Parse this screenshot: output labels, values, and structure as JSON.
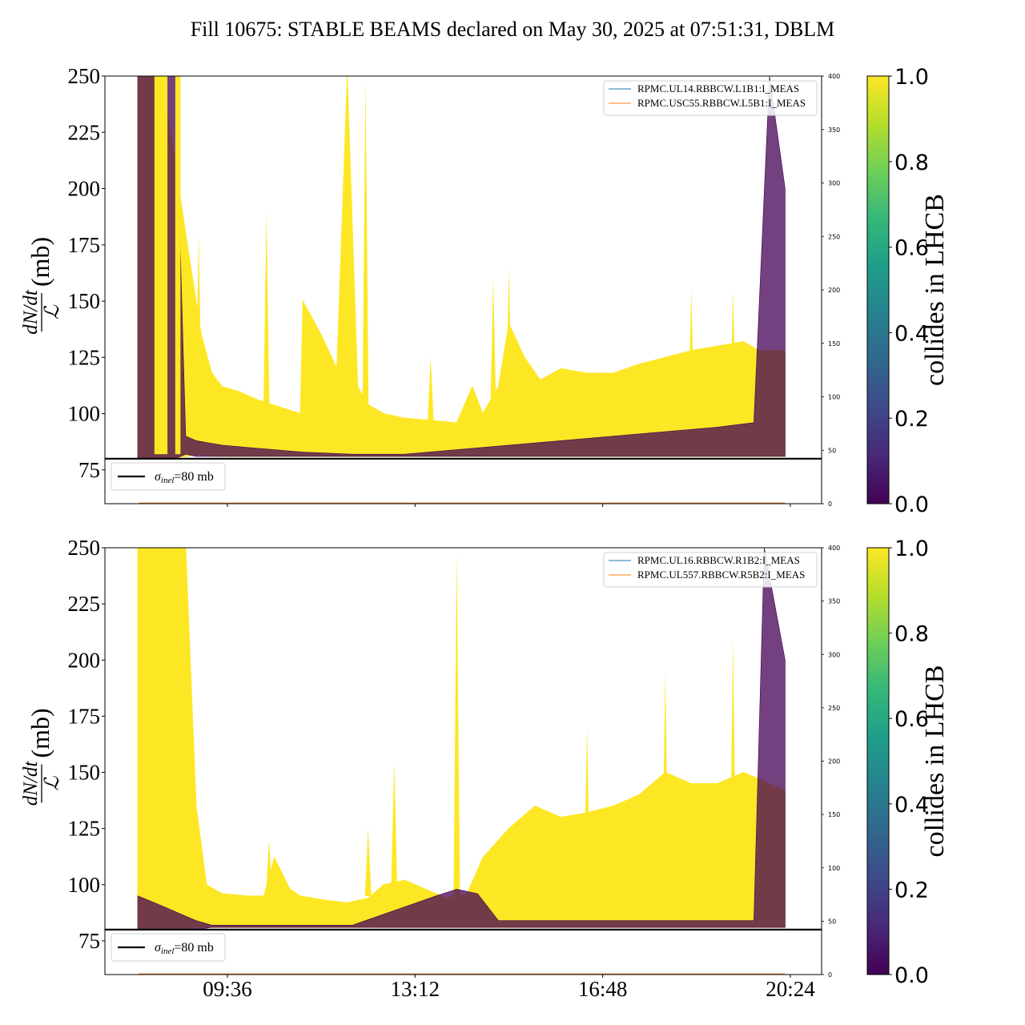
{
  "title": "Fill 10675: STABLE BEAMS declared on May 30, 2025 at 07:51:31, DBLM",
  "colors": {
    "collides": "#fde725",
    "noncollides": "#440154",
    "line_blue": "#1f77b4",
    "line_orange": "#ff7f0e",
    "reference": "#000000"
  },
  "chart_data": [
    {
      "type": "area",
      "panel": "top",
      "ylabel": {
        "numerator": "dN/dt",
        "denominator": "ℒ",
        "unit": "(mb)"
      },
      "ylim": [
        60,
        250
      ],
      "yticks": [
        75,
        100,
        125,
        150,
        175,
        200,
        225,
        250
      ],
      "right_axis": {
        "ylim": [
          0,
          400
        ],
        "ticks": [
          0,
          50,
          100,
          150,
          200,
          250,
          300,
          350,
          400
        ]
      },
      "xticks": [
        "09:36",
        "13:12",
        "16:48",
        "20:24"
      ],
      "xlim_hours": [
        7.25,
        21.0
      ],
      "xtick_hours": [
        9.6,
        13.2,
        16.8,
        20.4
      ],
      "series": [
        {
          "name": "RPMC.UL14.RBBCW.L1B1:I_MEAS",
          "color": "line_blue",
          "values": [
            0,
            0
          ]
        },
        {
          "name": "RPMC.USC55.RBBCW.L5B1:I_MEAS",
          "color": "line_orange",
          "values": [
            0,
            0
          ]
        }
      ],
      "reference_line": {
        "value": 80,
        "label_symbol": "σ",
        "label_sub": "inel",
        "label_rest": "=80 mb"
      },
      "envelope_collides": {
        "t": [
          7.88,
          8.05,
          8.35,
          8.8,
          9.1,
          9.3,
          9.5,
          9.8,
          10.2,
          10.6,
          11.0,
          11.05,
          11.4,
          11.7,
          11.9,
          12.1,
          12.3,
          12.6,
          13.0,
          13.5,
          14.0,
          14.3,
          14.5,
          14.8,
          15.0,
          15.3,
          15.6,
          16.0,
          16.5,
          17.0,
          17.5,
          18.0,
          18.5,
          19.0,
          19.5,
          19.8,
          20.3
        ],
        "upper": [
          250,
          250,
          250,
          180,
          135,
          118,
          112,
          110,
          106,
          103,
          100,
          150,
          135,
          120,
          250,
          112,
          104,
          100,
          98,
          97,
          96,
          112,
          100,
          112,
          140,
          125,
          115,
          120,
          118,
          118,
          122,
          125,
          128,
          130,
          132,
          128,
          128
        ],
        "lower": [
          80,
          80,
          80,
          81,
          82,
          81,
          81,
          81,
          81,
          81,
          81,
          81,
          81,
          81,
          81,
          81,
          81,
          81,
          81,
          81,
          81,
          81,
          81,
          81,
          81,
          81,
          81,
          81,
          81,
          81,
          81,
          81,
          81,
          81,
          81,
          81,
          81
        ]
      },
      "envelope_noncollides": {
        "t": [
          7.88,
          8.1,
          8.35,
          8.6,
          8.8,
          9.0,
          9.5,
          10.0,
          11.0,
          12.0,
          13.0,
          14.0,
          15.0,
          16.0,
          17.0,
          18.0,
          19.0,
          19.7,
          20.0,
          20.3
        ],
        "upper": [
          250,
          250,
          250,
          250,
          90,
          88,
          86,
          85,
          83,
          82,
          82,
          84,
          86,
          88,
          90,
          92,
          94,
          96,
          250,
          200
        ],
        "lower": [
          80,
          80,
          80,
          80,
          82,
          81,
          81,
          81,
          81,
          81,
          81,
          81,
          81,
          81,
          81,
          81,
          81,
          81,
          81,
          81
        ]
      },
      "spikes": [
        {
          "t": 9.05,
          "value": 180
        },
        {
          "t": 10.35,
          "value": 190
        },
        {
          "t": 11.9,
          "value": 250
        },
        {
          "t": 12.25,
          "value": 250
        },
        {
          "t": 13.5,
          "value": 125
        },
        {
          "t": 14.7,
          "value": 160
        },
        {
          "t": 15.0,
          "value": 165
        },
        {
          "t": 18.5,
          "value": 155
        },
        {
          "t": 19.3,
          "value": 155
        }
      ]
    },
    {
      "type": "area",
      "panel": "bottom",
      "ylabel": {
        "numerator": "dN/dt",
        "denominator": "ℒ",
        "unit": "(mb)"
      },
      "ylim": [
        60,
        250
      ],
      "yticks": [
        75,
        100,
        125,
        150,
        175,
        200,
        225,
        250
      ],
      "right_axis": {
        "ylim": [
          0,
          400
        ],
        "ticks": [
          0,
          50,
          100,
          150,
          200,
          250,
          300,
          350,
          400
        ]
      },
      "xticks": [
        "09:36",
        "13:12",
        "16:48",
        "20:24"
      ],
      "xlim_hours": [
        7.25,
        21.0
      ],
      "xtick_hours": [
        9.6,
        13.2,
        16.8,
        20.4
      ],
      "series": [
        {
          "name": "RPMC.UL16.RBBCW.R1B2:I_MEAS",
          "color": "line_blue",
          "values": [
            0,
            0
          ]
        },
        {
          "name": "RPMC.UL557.RBBCW.R5B2:I_MEAS",
          "color": "line_orange",
          "values": [
            0,
            0
          ]
        }
      ],
      "reference_line": {
        "value": 80,
        "label_symbol": "σ",
        "label_sub": "inel",
        "label_rest": "=80 mb"
      },
      "envelope_collides": {
        "t": [
          7.88,
          8.3,
          8.8,
          9.0,
          9.2,
          9.5,
          10.0,
          10.3,
          10.5,
          10.8,
          11.0,
          11.5,
          11.9,
          12.3,
          12.6,
          13.0,
          13.4,
          13.8,
          14.2,
          14.5,
          15.0,
          15.5,
          16.0,
          16.5,
          17.0,
          17.5,
          18.0,
          18.5,
          19.0,
          19.5,
          20.0,
          20.3
        ],
        "upper": [
          250,
          250,
          250,
          135,
          100,
          96,
          95,
          95,
          112,
          98,
          95,
          93,
          92,
          94,
          100,
          102,
          98,
          94,
          96,
          112,
          125,
          135,
          130,
          132,
          135,
          140,
          150,
          145,
          145,
          150,
          145,
          142
        ],
        "lower": [
          80,
          80,
          80,
          81,
          81,
          81,
          81,
          81,
          81,
          81,
          81,
          81,
          81,
          81,
          81,
          81,
          81,
          81,
          81,
          81,
          81,
          81,
          81,
          81,
          81,
          81,
          81,
          81,
          81,
          81,
          81,
          81
        ]
      },
      "envelope_noncollides": {
        "t": [
          7.88,
          8.2,
          8.6,
          9.0,
          9.3,
          12.0,
          13.6,
          14.0,
          14.4,
          14.8,
          19.7,
          19.9,
          20.3
        ],
        "upper": [
          95,
          92,
          88,
          84,
          82,
          82,
          95,
          98,
          96,
          84,
          84,
          250,
          200
        ],
        "lower": [
          80,
          80,
          80,
          80,
          81,
          81,
          81,
          81,
          81,
          81,
          81,
          81,
          81
        ]
      },
      "spikes": [
        {
          "t": 10.4,
          "value": 120
        },
        {
          "t": 12.3,
          "value": 125
        },
        {
          "t": 12.8,
          "value": 155
        },
        {
          "t": 14.0,
          "value": 248
        },
        {
          "t": 16.5,
          "value": 170
        },
        {
          "t": 18.0,
          "value": 195
        },
        {
          "t": 19.3,
          "value": 210
        }
      ]
    }
  ],
  "colorbar": {
    "label": "collides in LHCB",
    "ticks": [
      "0.0",
      "0.2",
      "0.4",
      "0.6",
      "0.8",
      "1.0"
    ],
    "tick_values": [
      0,
      0.2,
      0.4,
      0.6,
      0.8,
      1.0
    ],
    "stops": [
      "#440154",
      "#482878",
      "#3e4989",
      "#31688e",
      "#26828e",
      "#1f9e89",
      "#35b779",
      "#6ece58",
      "#b5de2b",
      "#fde725"
    ]
  }
}
